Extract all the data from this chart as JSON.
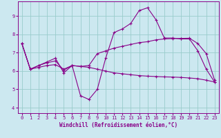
{
  "xlabel": "Windchill (Refroidissement éolien,°C)",
  "bg_color": "#cce8f0",
  "line_color": "#880088",
  "grid_color": "#99cccc",
  "xlim": [
    -0.5,
    23.5
  ],
  "ylim": [
    3.7,
    9.8
  ],
  "yticks": [
    4,
    5,
    6,
    7,
    8,
    9
  ],
  "xticks": [
    0,
    1,
    2,
    3,
    4,
    5,
    6,
    7,
    8,
    9,
    10,
    11,
    12,
    13,
    14,
    15,
    16,
    17,
    18,
    19,
    20,
    21,
    22,
    23
  ],
  "line1_x": [
    0,
    1,
    2,
    3,
    4,
    5,
    6,
    7,
    8,
    9,
    10,
    11,
    12,
    13,
    14,
    15,
    16,
    17,
    18,
    19,
    20,
    21,
    22,
    23
  ],
  "line1_y": [
    7.5,
    6.1,
    6.3,
    6.5,
    6.7,
    5.9,
    6.3,
    4.65,
    4.45,
    5.0,
    6.7,
    8.1,
    8.3,
    8.6,
    9.3,
    9.45,
    8.8,
    7.8,
    7.8,
    7.75,
    7.75,
    7.1,
    6.1,
    5.4
  ],
  "line2_x": [
    0,
    1,
    2,
    3,
    4,
    5,
    6,
    7,
    8,
    9,
    10,
    11,
    12,
    13,
    14,
    15,
    16,
    17,
    18,
    19,
    20,
    21,
    22,
    23
  ],
  "line2_y": [
    7.5,
    6.1,
    6.3,
    6.45,
    6.55,
    6.05,
    6.3,
    6.25,
    6.3,
    6.95,
    7.1,
    7.25,
    7.35,
    7.45,
    7.55,
    7.6,
    7.7,
    7.75,
    7.77,
    7.78,
    7.79,
    7.5,
    6.95,
    5.5
  ],
  "line3_x": [
    0,
    1,
    2,
    3,
    4,
    5,
    6,
    7,
    8,
    9,
    10,
    11,
    12,
    13,
    14,
    15,
    16,
    17,
    18,
    19,
    20,
    21,
    22,
    23
  ],
  "line3_y": [
    7.5,
    6.1,
    6.2,
    6.3,
    6.35,
    6.1,
    6.3,
    6.25,
    6.2,
    6.1,
    6.0,
    5.9,
    5.85,
    5.8,
    5.75,
    5.72,
    5.7,
    5.68,
    5.67,
    5.65,
    5.62,
    5.58,
    5.5,
    5.4
  ]
}
